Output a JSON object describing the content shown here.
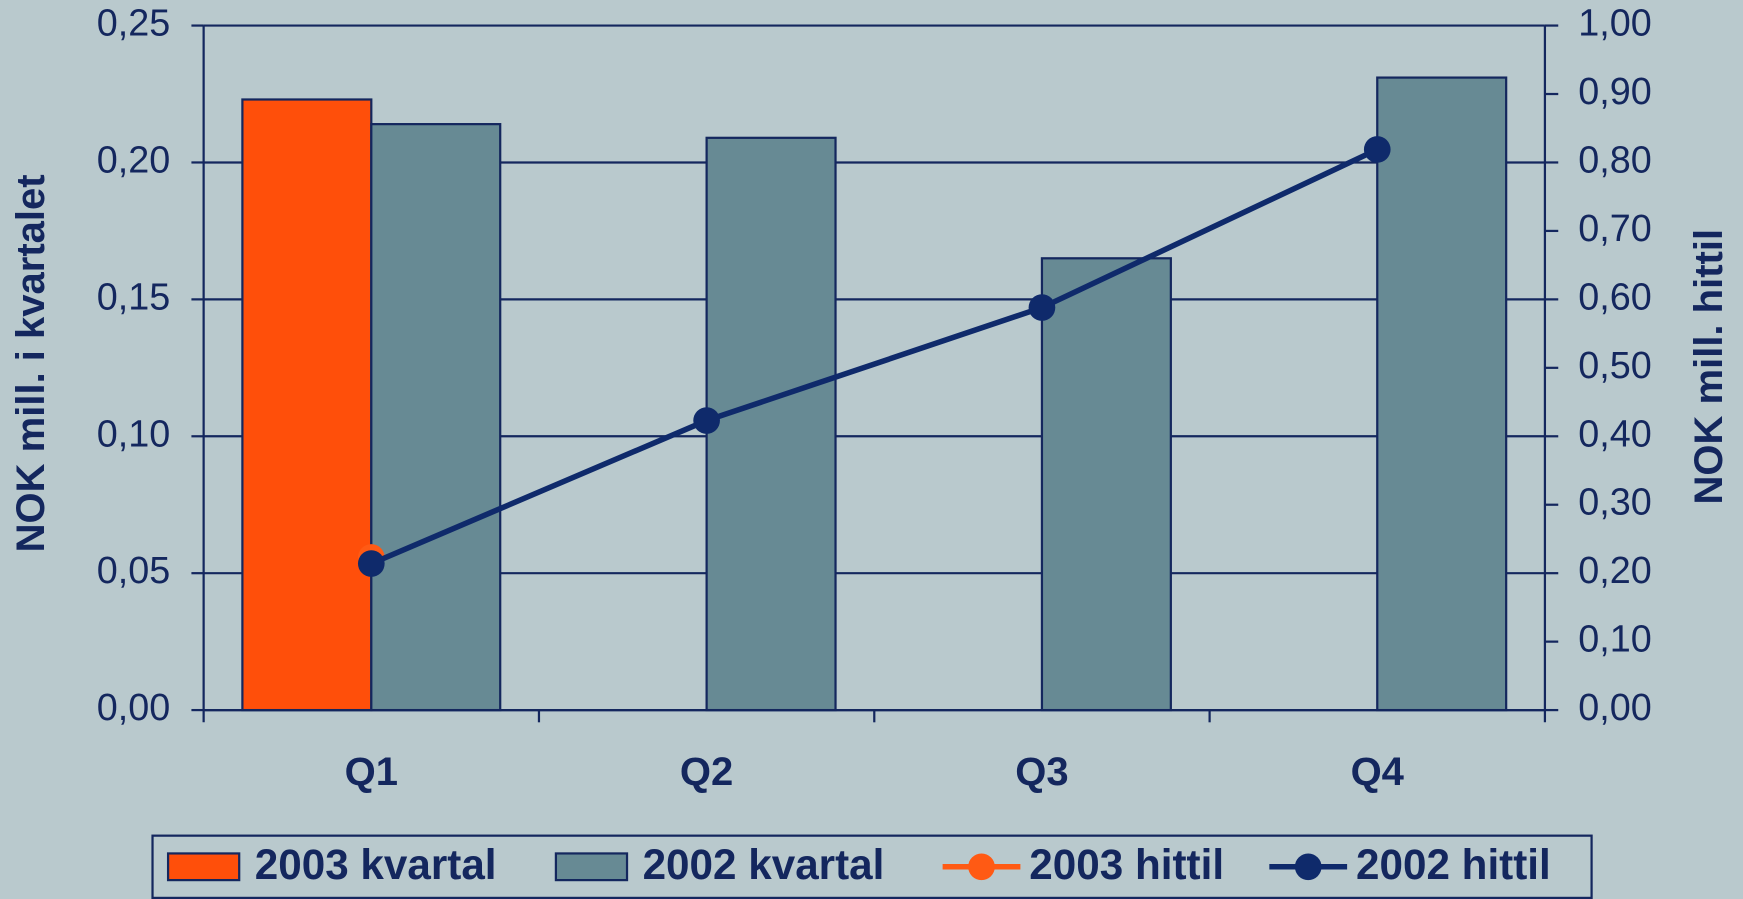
{
  "chart_data": {
    "type": "bar",
    "categories": [
      "Q1",
      "Q2",
      "Q3",
      "Q4"
    ],
    "series": [
      {
        "name": "2003 kvartal",
        "type": "bar",
        "color": "#ff4f0a",
        "values": [
          0.223,
          null,
          null,
          null
        ]
      },
      {
        "name": "2002 kvartal",
        "type": "bar",
        "color": "#678a94",
        "values": [
          0.214,
          0.209,
          0.165,
          0.231
        ]
      },
      {
        "name": "2003 hittil",
        "type": "line",
        "axis": "y2",
        "color": "#ff5a14",
        "values": [
          0.223,
          null,
          null,
          null
        ]
      },
      {
        "name": "2002 hittil",
        "type": "line",
        "axis": "y2",
        "color": "#0f2a6b",
        "values": [
          0.214,
          0.423,
          0.588,
          0.819
        ]
      }
    ],
    "ylabel": "NOK mill. i kvartalet",
    "y2label": "NOK mill. hittil",
    "ylim": [
      0,
      0.25
    ],
    "yticks": [
      {
        "value": 0,
        "label": "0,00"
      },
      {
        "value": 0.05,
        "label": "0,05"
      },
      {
        "value": 0.1,
        "label": "0,10"
      },
      {
        "value": 0.15,
        "label": "0,15"
      },
      {
        "value": 0.2,
        "label": "0,20"
      },
      {
        "value": 0.25,
        "label": "0,25"
      }
    ],
    "y2lim": [
      0,
      1
    ],
    "y2ticks": [
      {
        "value": 0,
        "label": "0,00"
      },
      {
        "value": 0.1,
        "label": "0,10"
      },
      {
        "value": 0.2,
        "label": "0,20"
      },
      {
        "value": 0.3,
        "label": "0,30"
      },
      {
        "value": 0.4,
        "label": "0,40"
      },
      {
        "value": 0.5,
        "label": "0,50"
      },
      {
        "value": 0.6,
        "label": "0,60"
      },
      {
        "value": 0.7,
        "label": "0,70"
      },
      {
        "value": 0.8,
        "label": "0,80"
      },
      {
        "value": 0.9,
        "label": "0,90"
      },
      {
        "value": 1,
        "label": "1,00"
      }
    ],
    "grid": true,
    "legend": "bottom"
  }
}
